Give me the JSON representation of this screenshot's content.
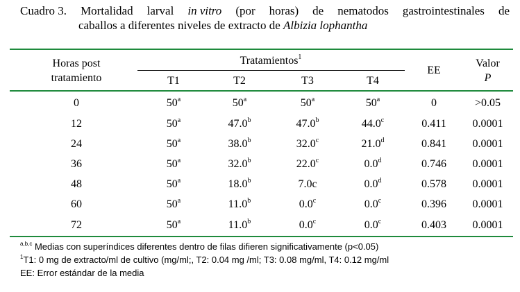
{
  "caption": {
    "label": "Cuadro 3.",
    "words1": [
      "Mortalidad",
      "larval",
      "in vitro",
      "(por",
      "horas)",
      "de",
      "nematodos",
      "gastrointestinales",
      "de"
    ],
    "line2_pre": "caballos a diferentes niveles de extracto de",
    "line2_species": "Albizia lophantha"
  },
  "header": {
    "horas_line1": "Horas post",
    "horas_line2": "tratamiento",
    "tratamientos": "Tratamientos",
    "tratamientos_sup": "1",
    "ee": "EE",
    "valor": "Valor",
    "p": "P",
    "t1": "T1",
    "t2": "T2",
    "t3": "T3",
    "t4": "T4"
  },
  "rows": [
    {
      "h": "0",
      "t1": "50",
      "t1s": "a",
      "t2": "50",
      "t2s": "a",
      "t3": "50",
      "t3s": "a",
      "t4": "50",
      "t4s": "a",
      "ee": "0",
      "p": ">0.05"
    },
    {
      "h": "12",
      "t1": "50",
      "t1s": "a",
      "t2": "47.0",
      "t2s": "b",
      "t3": "47.0",
      "t3s": "b",
      "t4": "44.0",
      "t4s": "c",
      "ee": "0.411",
      "p": "0.0001"
    },
    {
      "h": "24",
      "t1": "50",
      "t1s": "a",
      "t2": "38.0",
      "t2s": "b",
      "t3": "32.0",
      "t3s": "c",
      "t4": "21.0",
      "t4s": "d",
      "ee": "0.841",
      "p": "0.0001"
    },
    {
      "h": "36",
      "t1": "50",
      "t1s": "a",
      "t2": "32.0",
      "t2s": "b",
      "t3": "22.0",
      "t3s": "c",
      "t4": "0.0",
      "t4s": "d",
      "ee": "0.746",
      "p": "0.0001"
    },
    {
      "h": "48",
      "t1": "50",
      "t1s": "a",
      "t2": "18.0",
      "t2s": "b",
      "t3": "7.0c",
      "t3s": "",
      "t4": "0.0",
      "t4s": "d",
      "ee": "0.578",
      "p": "0.0001"
    },
    {
      "h": "60",
      "t1": "50",
      "t1s": "a",
      "t2": "11.0",
      "t2s": "b",
      "t3": "0.0",
      "t3s": "c",
      "t4": "0.0",
      "t4s": "c",
      "ee": "0.396",
      "p": "0.0001"
    },
    {
      "h": "72",
      "t1": "50",
      "t1s": "a",
      "t2": "11.0",
      "t2s": "b",
      "t3": "0.0",
      "t3s": "c",
      "t4": "0.0",
      "t4s": "c",
      "ee": "0.403",
      "p": "0.0001"
    }
  ],
  "notes": {
    "n1_sup": "a,b,c",
    "n1": "Medias con superíndices diferentes dentro de filas difieren significativamente (p<0.05)",
    "n2_sup": "1",
    "n2": "T1: 0 mg de extracto/ml de cultivo (mg/ml;, T2: 0.04 mg /ml; T3: 0.08 mg/ml, T4: 0.12 mg/ml",
    "n3": "EE: Error estándar de la media"
  },
  "colors": {
    "rule": "#1e8a3c"
  }
}
